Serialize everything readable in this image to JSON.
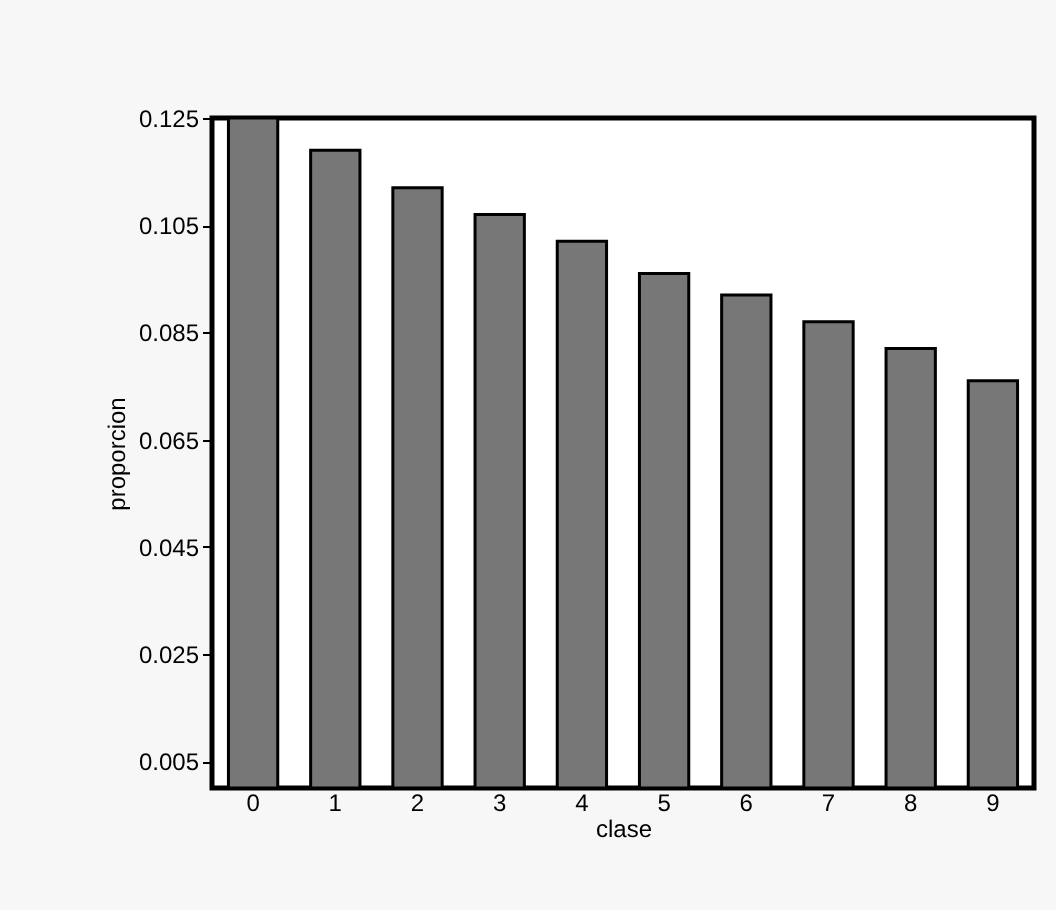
{
  "chart_data": {
    "type": "bar",
    "xlabel": "clase",
    "ylabel": "proporcion",
    "categories": [
      "0",
      "1",
      "2",
      "3",
      "4",
      "5",
      "6",
      "7",
      "8",
      "9"
    ],
    "values": [
      0.125,
      0.119,
      0.112,
      0.107,
      0.102,
      0.096,
      0.092,
      0.087,
      0.082,
      0.076
    ],
    "color": "#777777",
    "ylim": [
      0,
      0.125
    ],
    "yticks": [
      0.005,
      0.025,
      0.045,
      0.065,
      0.085,
      0.105,
      0.125
    ],
    "grid": false
  }
}
